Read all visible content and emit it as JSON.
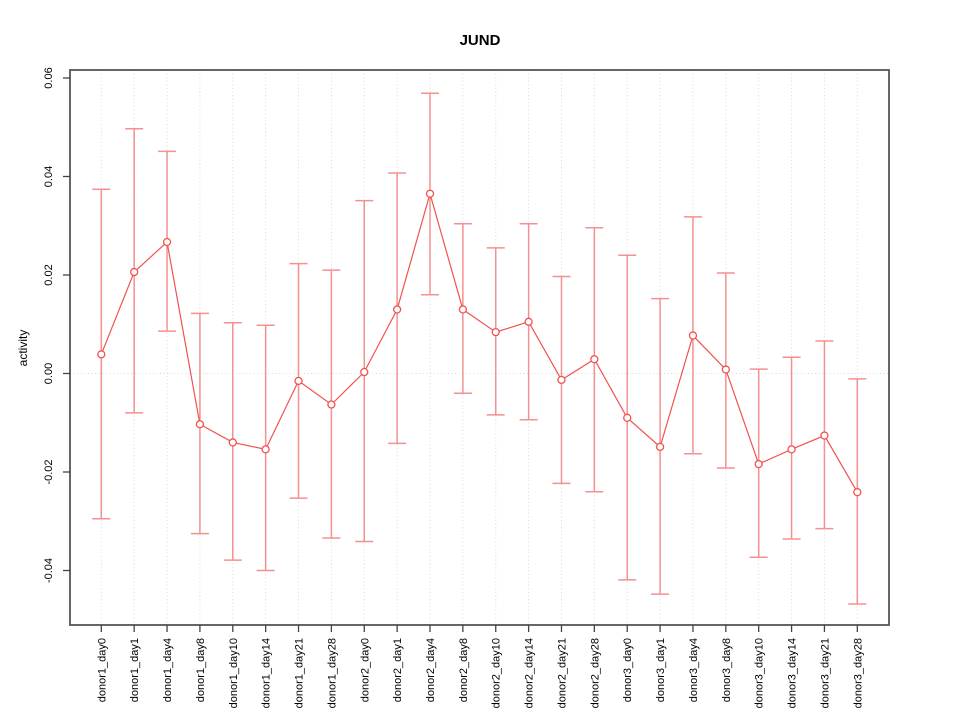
{
  "chart_data": {
    "type": "line",
    "title": "JUND",
    "ylabel": "activity",
    "xlabel": "",
    "legend": "none",
    "grid": "vertical dotted gridline per category; dotted horizontal line at y=0",
    "point_marker": "open-circle",
    "error_bars": true,
    "ylim": [
      -0.05,
      0.062
    ],
    "ytick_labels": [
      "0.06",
      "0.04",
      "0.02",
      "0.00",
      "-0.02",
      "-0.04"
    ],
    "categories": [
      "donor1_day0",
      "donor1_day1",
      "donor1_day4",
      "donor1_day8",
      "donor1_day10",
      "donor1_day14",
      "donor1_day21",
      "donor1_day28",
      "donor2_day0",
      "donor2_day1",
      "donor2_day4",
      "donor2_day8",
      "donor2_day10",
      "donor2_day14",
      "donor2_day21",
      "donor2_day28",
      "donor3_day0",
      "donor3_day1",
      "donor3_day4",
      "donor3_day8",
      "donor3_day10",
      "donor3_day14",
      "donor3_day21",
      "donor3_day28"
    ],
    "series": [
      {
        "name": "activity",
        "values": [
          0.0039,
          0.0206,
          0.0267,
          -0.0103,
          -0.014,
          -0.0154,
          -0.0015,
          -0.0063,
          0.0003,
          0.013,
          0.0365,
          0.013,
          0.0084,
          0.0105,
          -0.0013,
          0.0029,
          -0.009,
          -0.0149,
          0.0077,
          0.0008,
          -0.0184,
          -0.0154,
          -0.0126,
          -0.0241
        ],
        "upper": [
          0.0374,
          0.0497,
          0.0451,
          0.0122,
          0.0103,
          0.0098,
          0.0223,
          0.021,
          0.0351,
          0.0407,
          0.0569,
          0.0304,
          0.0255,
          0.0304,
          0.0197,
          0.0296,
          0.024,
          0.0152,
          0.0318,
          0.0204,
          0.0009,
          0.0033,
          0.0066,
          -0.0011
        ],
        "lower": [
          -0.0295,
          -0.008,
          0.0086,
          -0.0325,
          -0.0379,
          -0.04,
          -0.0253,
          -0.0334,
          -0.0341,
          -0.0142,
          0.016,
          -0.004,
          -0.0084,
          -0.0094,
          -0.0223,
          -0.024,
          -0.0419,
          -0.0448,
          -0.0163,
          -0.0192,
          -0.0373,
          -0.0336,
          -0.0315,
          -0.0468
        ]
      }
    ],
    "colors": {
      "line": "#ef5350",
      "marker": "#ef5350",
      "error_bar": "#f59090",
      "grid": "#d9d9d9",
      "axis": "#555555",
      "tick": "#444444",
      "text": "#000000",
      "background": "#ffffff"
    }
  }
}
